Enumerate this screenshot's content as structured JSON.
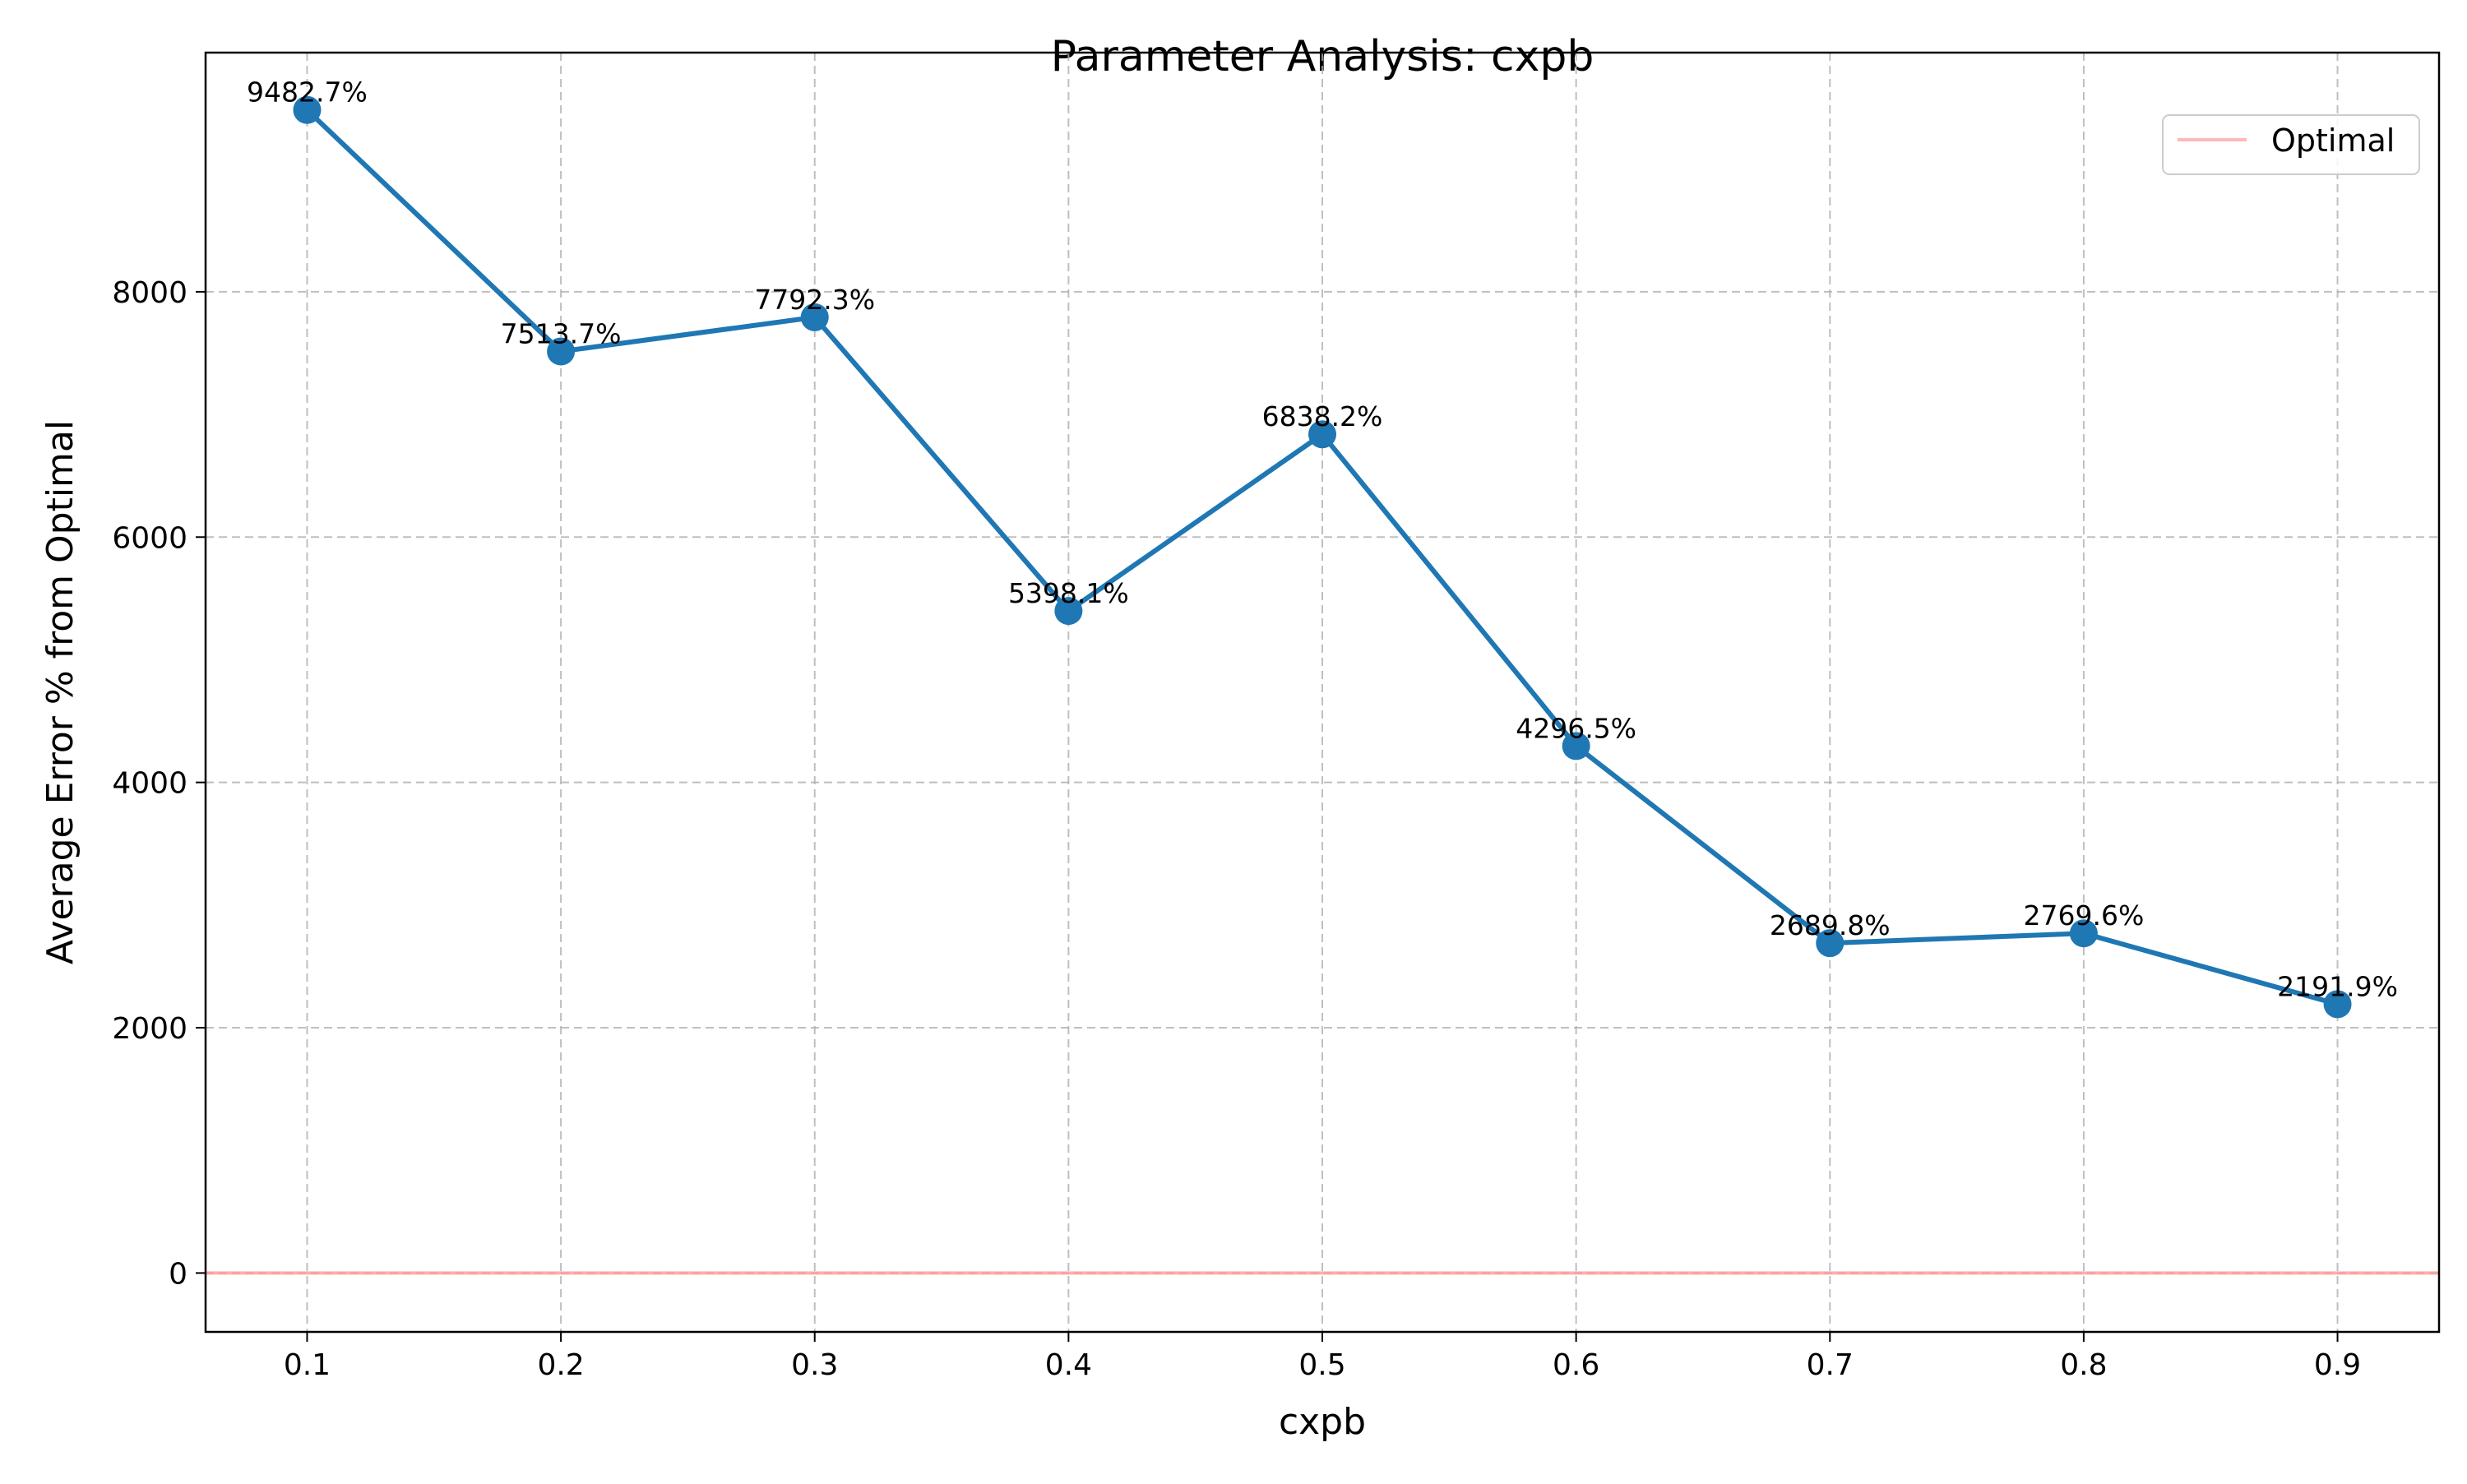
{
  "chart_data": {
    "type": "line",
    "title": "Parameter Analysis: cxpb",
    "xlabel": "cxpb",
    "ylabel": "Average Error % from Optimal",
    "x": [
      0.1,
      0.2,
      0.3,
      0.4,
      0.5,
      0.6,
      0.7,
      0.8,
      0.9
    ],
    "x_tick_labels": [
      "0.1",
      "0.2",
      "0.3",
      "0.4",
      "0.5",
      "0.6",
      "0.7",
      "0.8",
      "0.9"
    ],
    "y_ticks": [
      0,
      2000,
      4000,
      6000,
      8000
    ],
    "y_tick_labels": [
      "0",
      "2000",
      "4000",
      "6000",
      "8000"
    ],
    "xlim": [
      0.06,
      0.94
    ],
    "ylim": [
      -480,
      9950
    ],
    "grid": true,
    "series": [
      {
        "values": [
          9482.7,
          7513.7,
          7792.3,
          5398.1,
          6838.2,
          4296.5,
          2689.8,
          2769.6,
          2191.9
        ],
        "data_labels": [
          "9482.7%",
          "7513.7%",
          "7792.3%",
          "5398.1%",
          "6838.2%",
          "4296.5%",
          "2689.8%",
          "2769.6%",
          "2191.9%"
        ],
        "color": "#1f77b4",
        "marker": "circle"
      }
    ],
    "reference_line": {
      "name": "Optimal",
      "y": 0,
      "color": "#ff9999"
    },
    "legend": {
      "position": "top-right",
      "entries": [
        "Optimal"
      ]
    }
  }
}
